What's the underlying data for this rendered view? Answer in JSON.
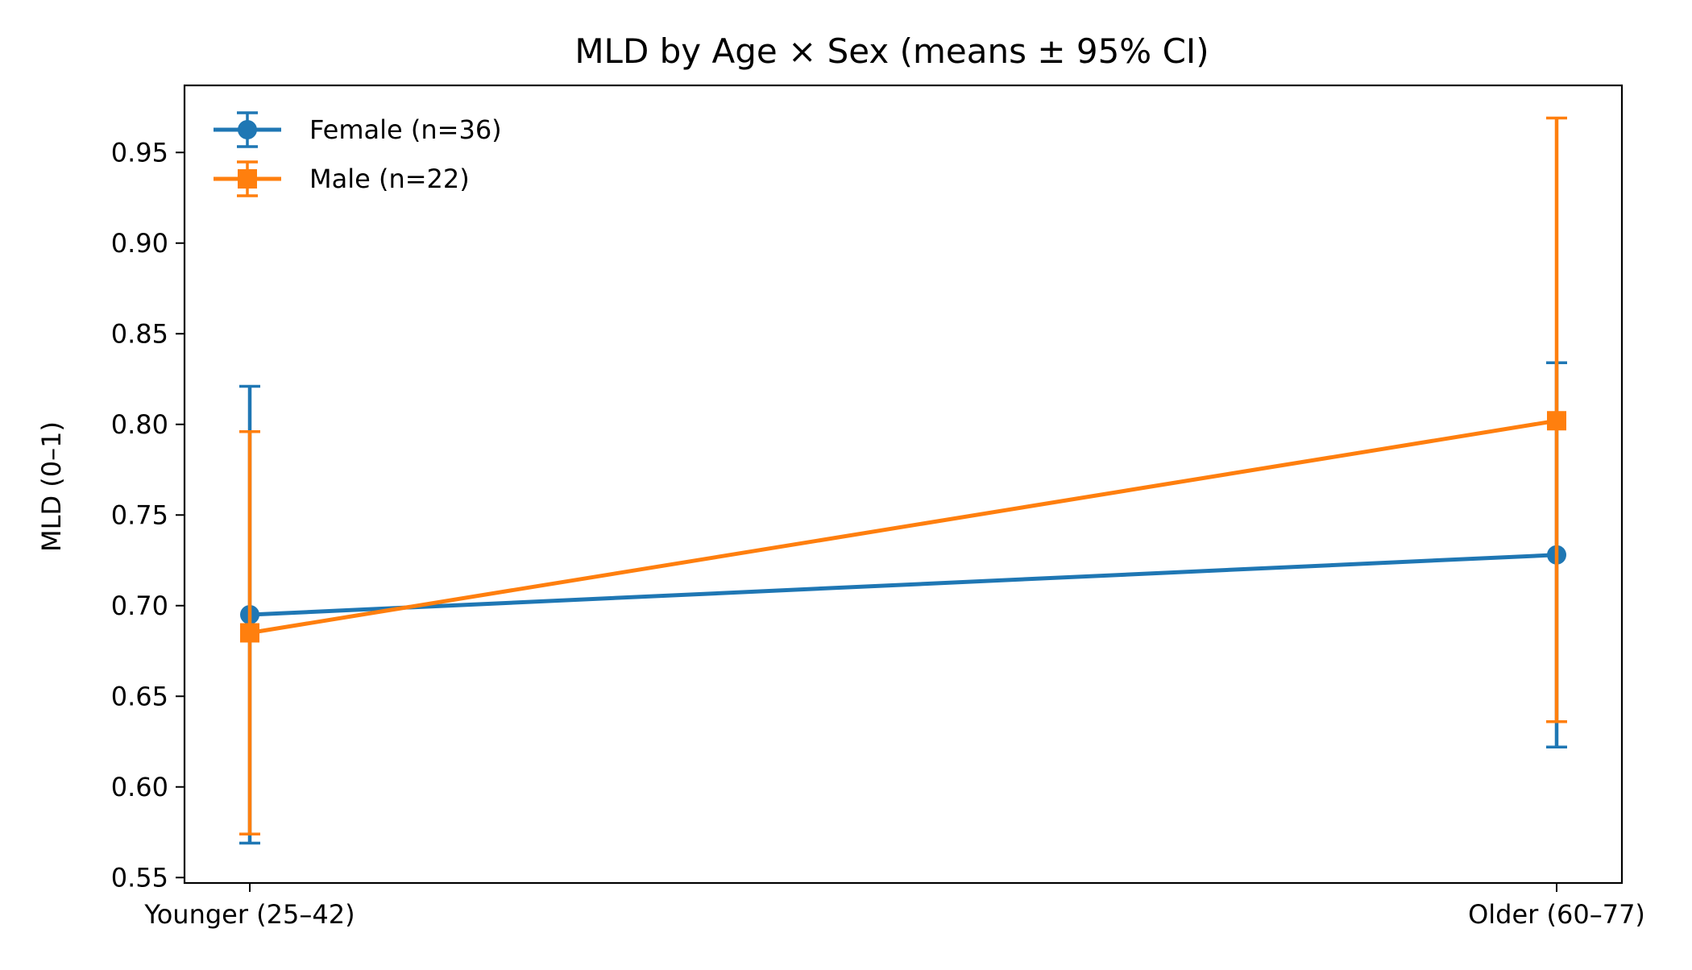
{
  "chart_data": {
    "type": "line",
    "title": "MLD by Age × Sex (means ± 95% CI)",
    "xlabel": "",
    "ylabel": "MLD (0–1)",
    "categories": [
      "Younger (25–42)",
      "Older (60–77)"
    ],
    "ylim": [
      0.547,
      0.987
    ],
    "yticks": [
      "0.55",
      "0.60",
      "0.65",
      "0.70",
      "0.75",
      "0.80",
      "0.85",
      "0.90",
      "0.95"
    ],
    "grid": false,
    "legend_position": "top-left",
    "series": [
      {
        "name": "Female (n=36)",
        "color": "#1f77b4",
        "marker": "circle",
        "values": [
          0.695,
          0.728
        ],
        "ci_low": [
          0.569,
          0.622
        ],
        "ci_high": [
          0.821,
          0.834
        ]
      },
      {
        "name": "Male (n=22)",
        "color": "#ff7f0e",
        "marker": "square",
        "values": [
          0.685,
          0.802
        ],
        "ci_low": [
          0.574,
          0.636
        ],
        "ci_high": [
          0.796,
          0.969
        ]
      }
    ]
  }
}
